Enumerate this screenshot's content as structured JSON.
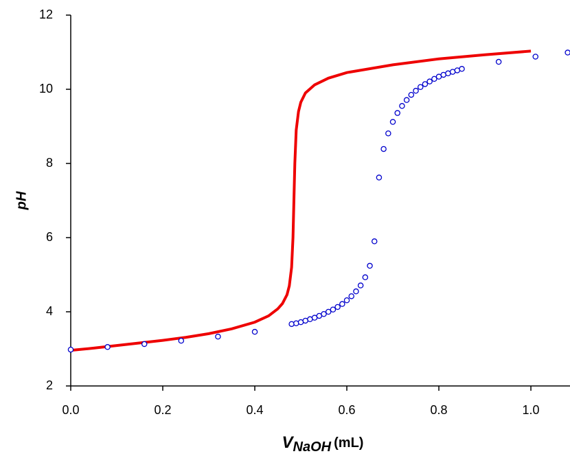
{
  "chart_data": {
    "type": "scatter-line",
    "ylabel": "pH",
    "xlabel": {
      "symbol": "V",
      "subscript": "NaOH",
      "unit": "(mL)"
    },
    "xlim": [
      0,
      1.085
    ],
    "ylim": [
      2,
      12
    ],
    "xticks": [
      {
        "value": 0,
        "label": "0.0"
      },
      0.2,
      0.4,
      0.6,
      0.8,
      {
        "value": 1,
        "label": "1.0"
      }
    ],
    "yticks": [
      2,
      4,
      6,
      8,
      10,
      12
    ],
    "series": [
      {
        "kind": "markers",
        "color": "#0000cc",
        "x": [
          0,
          0.08,
          0.16,
          0.24,
          0.32,
          0.4,
          0.48,
          0.49,
          0.5,
          0.51,
          0.52,
          0.53,
          0.54,
          0.55,
          0.56,
          0.57,
          0.58,
          0.59,
          0.6,
          0.61,
          0.62,
          0.63,
          0.64,
          0.65,
          0.66,
          0.67,
          0.68,
          0.69,
          0.7,
          0.71,
          0.72,
          0.73,
          0.74,
          0.75,
          0.76,
          0.77,
          0.78,
          0.79,
          0.8,
          0.81,
          0.82,
          0.83,
          0.84,
          0.85,
          0.93,
          1.01,
          1.08
        ],
        "values": [
          2.98,
          3.05,
          3.13,
          3.22,
          3.33,
          3.46,
          3.67,
          3.69,
          3.72,
          3.76,
          3.8,
          3.84,
          3.89,
          3.94,
          4.0,
          4.06,
          4.13,
          4.21,
          4.31,
          4.42,
          4.55,
          4.71,
          4.93,
          5.24,
          5.9,
          7.62,
          8.39,
          8.81,
          9.12,
          9.36,
          9.55,
          9.71,
          9.85,
          9.96,
          10.06,
          10.14,
          10.21,
          10.28,
          10.34,
          10.39,
          10.43,
          10.47,
          10.51,
          10.55,
          10.74,
          10.88,
          10.99
        ]
      },
      {
        "kind": "line",
        "color": "#ee0000",
        "x": [
          0,
          0.05,
          0.1,
          0.15,
          0.2,
          0.25,
          0.3,
          0.35,
          0.4,
          0.43,
          0.45,
          0.46,
          0.47,
          0.475,
          0.48,
          0.483,
          0.485,
          0.487,
          0.49,
          0.495,
          0.5,
          0.51,
          0.53,
          0.56,
          0.6,
          0.7,
          0.8,
          0.9,
          1.0
        ],
        "values": [
          2.96,
          3.02,
          3.09,
          3.16,
          3.23,
          3.31,
          3.41,
          3.54,
          3.72,
          3.89,
          4.08,
          4.22,
          4.46,
          4.7,
          5.2,
          6.0,
          7.0,
          8.0,
          8.9,
          9.4,
          9.65,
          9.9,
          10.12,
          10.3,
          10.45,
          10.66,
          10.82,
          10.93,
          11.03
        ]
      }
    ]
  }
}
